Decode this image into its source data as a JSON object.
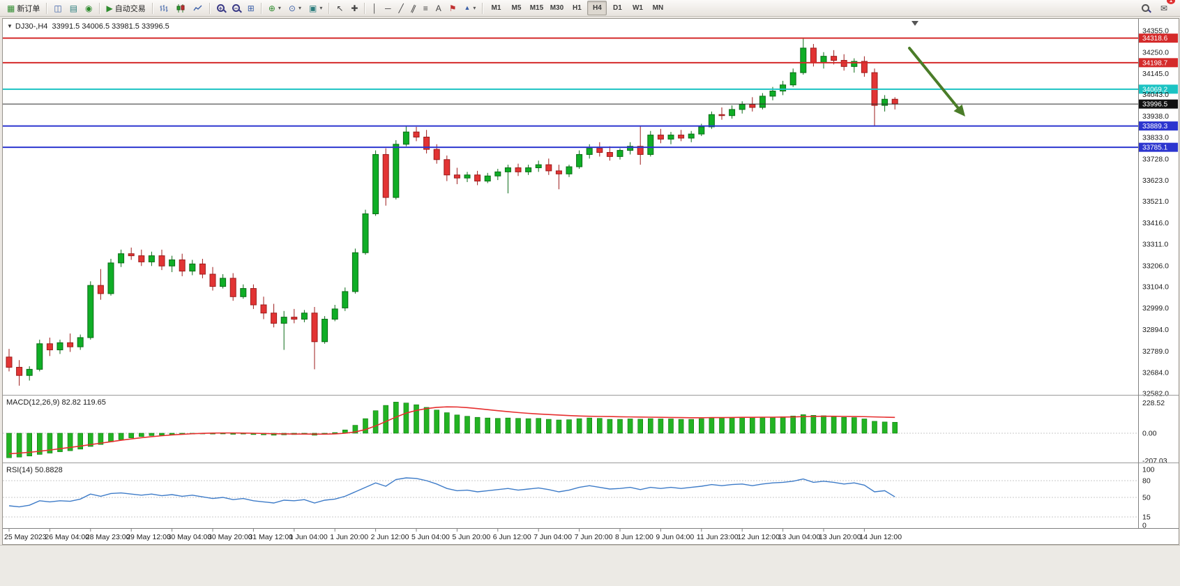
{
  "toolbar": {
    "new_order_label": "新订单",
    "auto_trading_label": "自动交易",
    "timeframes": [
      "M1",
      "M5",
      "M15",
      "M30",
      "H1",
      "H4",
      "D1",
      "W1",
      "MN"
    ],
    "active_timeframe": "H4",
    "notification_badge": "1"
  },
  "icons": {
    "new_order": "▦",
    "chart_window": "◫",
    "market_watch": "▤",
    "navigator": "◉",
    "autotrade_play": "▶",
    "tile": "⊞",
    "indicators": "⊕",
    "periods": "⊙",
    "templates": "▣",
    "cursor": "↖",
    "crosshair": "✚",
    "vline": "│",
    "hline": "─",
    "trendline": "╱",
    "channel": "∥",
    "fibonacci": "≡",
    "text": "A",
    "label": "⚑",
    "shapes": "▲",
    "dropdown": "▾",
    "mail": "✉",
    "one_click": "▼"
  },
  "chart_header": {
    "symbol_period": "DJ30-,H4",
    "ohlc": "33991.5 34006.5 33981.5 33996.5"
  },
  "indicators": {
    "macd_label": "MACD(12,26,9) 82.82 119.65",
    "rsi_label": "RSI(14) 50.8828"
  },
  "price_axis": {
    "labels": [
      "34355.0",
      "34250.0",
      "34145.0",
      "34043.0",
      "33938.0",
      "33833.0",
      "33728.0",
      "33623.0",
      "33521.0",
      "33416.0",
      "33311.0",
      "33206.0",
      "33104.0",
      "32999.0",
      "32894.0",
      "32789.0",
      "32684.0",
      "32582.0"
    ]
  },
  "macd_axis": {
    "labels": [
      "228.52",
      "0.00",
      "-207.03"
    ],
    "values": [
      228.52,
      0,
      -207.03
    ]
  },
  "rsi_axis": {
    "labels": [
      "100",
      "80",
      "50",
      "15",
      "0"
    ],
    "values": [
      100,
      80,
      50,
      15,
      0
    ],
    "level_lines": [
      80,
      50,
      15
    ]
  },
  "time_axis": {
    "labels": [
      "25 May 2023",
      "26 May 04:00",
      "28 May 23:00",
      "29 May 12:00",
      "30 May 04:00",
      "30 May 20:00",
      "31 May 12:00",
      "1 Jun 04:00",
      "1 Jun 20:00",
      "2 Jun 12:00",
      "5 Jun 04:00",
      "5 Jun 20:00",
      "6 Jun 12:00",
      "7 Jun 04:00",
      "7 Jun 20:00",
      "8 Jun 12:00",
      "9 Jun 04:00",
      "11 Jun 23:00",
      "12 Jun 12:00",
      "13 Jun 04:00",
      "13 Jun 20:00",
      "14 Jun 12:00"
    ],
    "candle_indices": [
      0,
      4,
      8,
      12,
      16,
      20,
      24,
      28,
      32,
      36,
      40,
      44,
      48,
      52,
      56,
      60,
      64,
      68,
      72,
      76,
      80,
      84
    ]
  },
  "levels": [
    {
      "label": "34318.6",
      "value": 34318.6,
      "color": "#d42a2a",
      "width": 2,
      "name": "resistance-line-upper"
    },
    {
      "label": "34198.7",
      "value": 34198.7,
      "color": "#d42a2a",
      "width": 2,
      "name": "resistance-line-lower"
    },
    {
      "label": "34069.2",
      "value": 34069.2,
      "color": "#1cc3c3",
      "width": 2,
      "name": "pivot-line-cyan"
    },
    {
      "label": "33996.5",
      "value": 33996.5,
      "color": "#2b2b2b",
      "width": 1,
      "name": "current-price-line",
      "badge": "#111111"
    },
    {
      "label": "33889.3",
      "value": 33889.3,
      "color": "#2c35cf",
      "width": 2,
      "name": "support-line-upper"
    },
    {
      "label": "33785.1",
      "value": 33785.1,
      "color": "#2c35cf",
      "width": 2,
      "name": "support-line-lower"
    }
  ],
  "annotation": {
    "type": "down-right-arrow",
    "color": "#4a7c28"
  },
  "chart_data": {
    "type": "candlestick",
    "symbol": "DJ30-",
    "timeframe": "H4",
    "ohlc_display": [
      33991.5,
      34006.5,
      33981.5,
      33996.5
    ],
    "ylim": [
      32560,
      34400
    ],
    "up_color": "#0fae26",
    "down_color": "#e23434",
    "candles": [
      [
        32760,
        32800,
        32690,
        32710
      ],
      [
        32710,
        32745,
        32620,
        32670
      ],
      [
        32670,
        32715,
        32645,
        32700
      ],
      [
        32700,
        32845,
        32690,
        32825
      ],
      [
        32825,
        32855,
        32765,
        32795
      ],
      [
        32795,
        32845,
        32775,
        32830
      ],
      [
        32830,
        32875,
        32785,
        32810
      ],
      [
        32810,
        32870,
        32795,
        32855
      ],
      [
        32855,
        33130,
        32845,
        33110
      ],
      [
        33110,
        33190,
        33040,
        33070
      ],
      [
        33070,
        33240,
        33060,
        33220
      ],
      [
        33220,
        33285,
        33200,
        33265
      ],
      [
        33265,
        33295,
        33235,
        33255
      ],
      [
        33255,
        33285,
        33205,
        33225
      ],
      [
        33225,
        33275,
        33205,
        33255
      ],
      [
        33255,
        33285,
        33185,
        33205
      ],
      [
        33205,
        33255,
        33175,
        33235
      ],
      [
        33235,
        33265,
        33155,
        33180
      ],
      [
        33180,
        33235,
        33160,
        33215
      ],
      [
        33215,
        33240,
        33145,
        33165
      ],
      [
        33165,
        33200,
        33085,
        33105
      ],
      [
        33105,
        33165,
        33095,
        33145
      ],
      [
        33145,
        33170,
        33035,
        33055
      ],
      [
        33055,
        33115,
        33045,
        33095
      ],
      [
        33095,
        33115,
        32995,
        33015
      ],
      [
        33015,
        33055,
        32945,
        32975
      ],
      [
        32975,
        33020,
        32905,
        32925
      ],
      [
        32925,
        32985,
        32795,
        32955
      ],
      [
        32955,
        32995,
        32925,
        32945
      ],
      [
        32945,
        32990,
        32930,
        32975
      ],
      [
        32975,
        33005,
        32700,
        32835
      ],
      [
        32835,
        32960,
        32825,
        32945
      ],
      [
        32945,
        33015,
        32935,
        32995
      ],
      [
        33000,
        33100,
        32985,
        33080
      ],
      [
        33080,
        33290,
        33070,
        33270
      ],
      [
        33270,
        33480,
        33260,
        33460
      ],
      [
        33460,
        33770,
        33450,
        33750
      ],
      [
        33750,
        33780,
        33500,
        33540
      ],
      [
        33540,
        33820,
        33530,
        33800
      ],
      [
        33800,
        33890,
        33790,
        33860
      ],
      [
        33860,
        33885,
        33815,
        33835
      ],
      [
        33835,
        33870,
        33755,
        33775
      ],
      [
        33775,
        33800,
        33705,
        33725
      ],
      [
        33725,
        33745,
        33620,
        33650
      ],
      [
        33650,
        33685,
        33605,
        33635
      ],
      [
        33635,
        33665,
        33615,
        33650
      ],
      [
        33650,
        33670,
        33600,
        33620
      ],
      [
        33620,
        33660,
        33610,
        33645
      ],
      [
        33645,
        33680,
        33625,
        33665
      ],
      [
        33665,
        33700,
        33560,
        33685
      ],
      [
        33685,
        33705,
        33645,
        33665
      ],
      [
        33665,
        33700,
        33650,
        33685
      ],
      [
        33685,
        33720,
        33665,
        33700
      ],
      [
        33700,
        33730,
        33650,
        33670
      ],
      [
        33670,
        33700,
        33580,
        33655
      ],
      [
        33655,
        33700,
        33640,
        33690
      ],
      [
        33690,
        33770,
        33680,
        33750
      ],
      [
        33750,
        33800,
        33730,
        33780
      ],
      [
        33780,
        33810,
        33740,
        33760
      ],
      [
        33760,
        33790,
        33720,
        33740
      ],
      [
        33740,
        33780,
        33725,
        33770
      ],
      [
        33770,
        33810,
        33750,
        33790
      ],
      [
        33790,
        33890,
        33700,
        33750
      ],
      [
        33750,
        33865,
        33740,
        33845
      ],
      [
        33845,
        33875,
        33805,
        33825
      ],
      [
        33825,
        33860,
        33800,
        33845
      ],
      [
        33845,
        33870,
        33815,
        33830
      ],
      [
        33830,
        33865,
        33810,
        33850
      ],
      [
        33850,
        33900,
        33840,
        33885
      ],
      [
        33885,
        33960,
        33875,
        33945
      ],
      [
        33945,
        33980,
        33920,
        33940
      ],
      [
        33940,
        33990,
        33925,
        33970
      ],
      [
        33970,
        34010,
        33950,
        33995
      ],
      [
        33995,
        34030,
        33960,
        33980
      ],
      [
        33980,
        34050,
        33970,
        34035
      ],
      [
        34035,
        34080,
        34015,
        34060
      ],
      [
        34060,
        34110,
        34040,
        34090
      ],
      [
        34090,
        34170,
        34080,
        34150
      ],
      [
        34150,
        34320,
        34140,
        34270
      ],
      [
        34270,
        34290,
        34180,
        34200
      ],
      [
        34200,
        34250,
        34170,
        34230
      ],
      [
        34230,
        34260,
        34190,
        34210
      ],
      [
        34210,
        34240,
        34160,
        34180
      ],
      [
        34180,
        34220,
        34150,
        34205
      ],
      [
        34205,
        34230,
        34130,
        34150
      ],
      [
        34150,
        34170,
        33890,
        33990
      ],
      [
        33990,
        34040,
        33960,
        34020
      ],
      [
        34020,
        34030,
        33970,
        33996.5
      ]
    ],
    "macd": {
      "params": "12,26,9",
      "current_hist": 82.82,
      "current_signal": 119.65,
      "range": [
        -207.03,
        228.52
      ],
      "hist": [
        -185,
        -180,
        -172,
        -160,
        -150,
        -140,
        -132,
        -120,
        -100,
        -85,
        -65,
        -48,
        -35,
        -25,
        -18,
        -14,
        -10,
        -8,
        -6,
        -5,
        -6,
        -5,
        -8,
        -6,
        -10,
        -12,
        -15,
        -12,
        -10,
        -8,
        -15,
        -8,
        5,
        25,
        60,
        110,
        170,
        210,
        235,
        228,
        215,
        195,
        175,
        155,
        138,
        128,
        120,
        115,
        112,
        115,
        112,
        110,
        112,
        105,
        100,
        102,
        110,
        115,
        112,
        105,
        105,
        108,
        106,
        110,
        108,
        108,
        105,
        105,
        110,
        118,
        118,
        118,
        122,
        118,
        120,
        122,
        125,
        130,
        140,
        135,
        132,
        128,
        120,
        118,
        108,
        90,
        85,
        82.8
      ],
      "signal": [
        -155,
        -150,
        -144,
        -136,
        -127,
        -117,
        -107,
        -97,
        -86,
        -75,
        -64,
        -53,
        -43,
        -34,
        -26,
        -19,
        -13,
        -8,
        -4,
        -1,
        1,
        2,
        2,
        1,
        0,
        -2,
        -4,
        -5,
        -6,
        -6,
        -7,
        -7,
        -5,
        0,
        10,
        28,
        55,
        88,
        122,
        152,
        172,
        186,
        195,
        199,
        198,
        193,
        186,
        178,
        170,
        163,
        156,
        150,
        145,
        141,
        137,
        133,
        130,
        128,
        127,
        126,
        124,
        123,
        122,
        121,
        120,
        119,
        118,
        117,
        117,
        118,
        118,
        119,
        120,
        120,
        121,
        121,
        122,
        123,
        125,
        127,
        128,
        128,
        127,
        126,
        125,
        123,
        121,
        119.65
      ]
    },
    "rsi": {
      "period": 14,
      "current": 50.8828,
      "levels": [
        80,
        50,
        15
      ],
      "range": [
        0,
        100
      ],
      "values": [
        35,
        33,
        36,
        44,
        42,
        44,
        43,
        47,
        56,
        52,
        57,
        58,
        56,
        54,
        56,
        53,
        55,
        52,
        54,
        51,
        48,
        50,
        46,
        48,
        44,
        42,
        40,
        45,
        44,
        46,
        40,
        45,
        47,
        52,
        60,
        68,
        76,
        70,
        82,
        85,
        84,
        80,
        74,
        66,
        62,
        63,
        60,
        62,
        64,
        66,
        63,
        65,
        67,
        64,
        60,
        63,
        68,
        71,
        68,
        65,
        66,
        68,
        64,
        68,
        66,
        68,
        66,
        68,
        70,
        73,
        71,
        73,
        74,
        71,
        74,
        76,
        77,
        79,
        83,
        77,
        79,
        77,
        74,
        76,
        72,
        60,
        62,
        51
      ]
    }
  }
}
